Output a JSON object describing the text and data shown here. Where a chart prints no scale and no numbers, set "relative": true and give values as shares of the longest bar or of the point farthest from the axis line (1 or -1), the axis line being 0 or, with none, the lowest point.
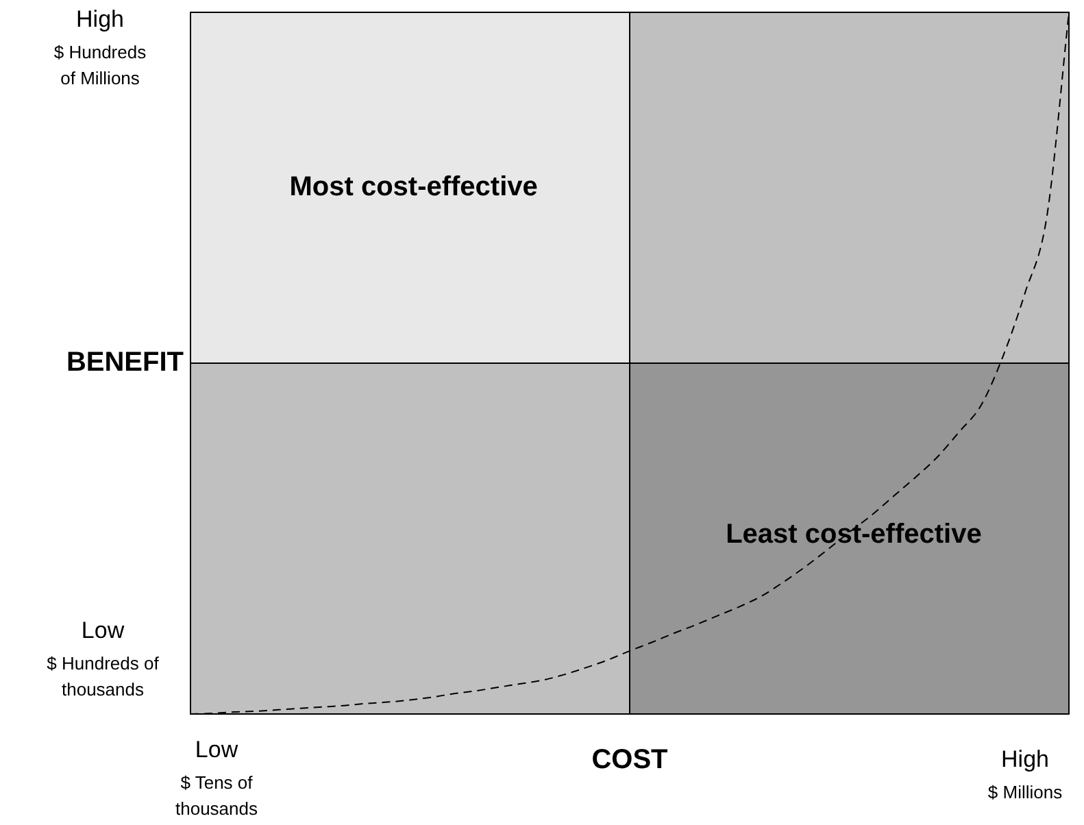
{
  "chart_data": {
    "type": "line",
    "relative": true,
    "xlabel": "COST",
    "ylabel": "BENEFIT",
    "categories": [
      null,
      null,
      null,
      null,
      null,
      null,
      null,
      null,
      null,
      null,
      null,
      null,
      null,
      null,
      null,
      null,
      null,
      null,
      null,
      null,
      null,
      null,
      null,
      null,
      null,
      null,
      null,
      null,
      null,
      null,
      null,
      null,
      null,
      null,
      null,
      null,
      null,
      null,
      null,
      null,
      null
    ],
    "series": [
      {
        "color": "#000000",
        "values": [
          0,
          0.001,
          0.003,
          0.004,
          0.006,
          0.008,
          0.01,
          0.012,
          0.015,
          0.017,
          0.02,
          0.024,
          0.029,
          0.033,
          0.038,
          0.043,
          0.048,
          0.056,
          0.066,
          0.077,
          0.09,
          0.102,
          0.115,
          0.127,
          0.14,
          0.153,
          0.168,
          0.188,
          0.21,
          0.234,
          0.259,
          0.283,
          0.31,
          0.337,
          0.366,
          0.402,
          0.44,
          0.51,
          0.6,
          0.71,
          1
        ]
      }
    ],
    "annotations": [
      "Most cost-effective",
      "Least cost-effective",
      "High\n$ Hundreds\nof Millions",
      "Low\n$ Hundreds of\nthousands",
      "Low\n$ Tens of\nthousands",
      "High\n$ Millions"
    ],
    "legend": false,
    "marker": "none",
    "line_style": "dashed"
  }
}
